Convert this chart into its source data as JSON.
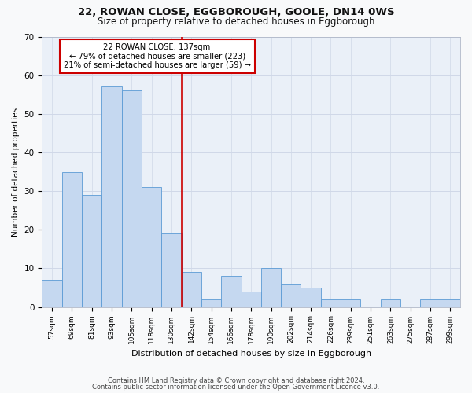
{
  "title1": "22, ROWAN CLOSE, EGGBOROUGH, GOOLE, DN14 0WS",
  "title2": "Size of property relative to detached houses in Eggborough",
  "xlabel": "Distribution of detached houses by size in Eggborough",
  "ylabel": "Number of detached properties",
  "bar_labels": [
    "57sqm",
    "69sqm",
    "81sqm",
    "93sqm",
    "105sqm",
    "118sqm",
    "130sqm",
    "142sqm",
    "154sqm",
    "166sqm",
    "178sqm",
    "190sqm",
    "202sqm",
    "214sqm",
    "226sqm",
    "239sqm",
    "251sqm",
    "263sqm",
    "275sqm",
    "287sqm",
    "299sqm"
  ],
  "bar_values": [
    7,
    35,
    29,
    57,
    56,
    31,
    19,
    9,
    2,
    8,
    4,
    10,
    6,
    5,
    2,
    2,
    0,
    2,
    0,
    2,
    2
  ],
  "bar_color": "#c5d8f0",
  "bar_edge_color": "#5b9bd5",
  "vline_x_bin": 6.5,
  "annotation_text_line1": "22 ROWAN CLOSE: 137sqm",
  "annotation_text_line2": "← 79% of detached houses are smaller (223)",
  "annotation_text_line3": "21% of semi-detached houses are larger (59) →",
  "annotation_box_color": "#ffffff",
  "annotation_box_edge": "#cc0000",
  "vline_color": "#cc0000",
  "ylim": [
    0,
    70
  ],
  "yticks": [
    0,
    10,
    20,
    30,
    40,
    50,
    60,
    70
  ],
  "grid_color": "#d0d8e8",
  "bg_color": "#eaf0f8",
  "fig_bg_color": "#f8f9fa",
  "footer1": "Contains HM Land Registry data © Crown copyright and database right 2024.",
  "footer2": "Contains public sector information licensed under the Open Government Licence v3.0."
}
